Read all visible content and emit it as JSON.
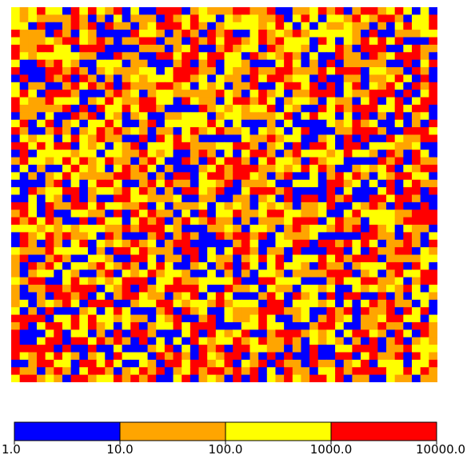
{
  "chart_data": {
    "type": "heatmap",
    "title": "",
    "xlabel": "",
    "ylabel": "",
    "grid": false,
    "rows": 50,
    "cols": 50,
    "scale": "log",
    "cell_value_note": "dense random-looking log-scale grid; individual cell values are not legible at this resolution",
    "colorbar": {
      "position": "bottom",
      "bins": [
        {
          "from": 1.0,
          "to": 10.0,
          "color": "#0000ff"
        },
        {
          "from": 10.0,
          "to": 100.0,
          "color": "#ffa500"
        },
        {
          "from": 100.0,
          "to": 1000.0,
          "color": "#ffff00"
        },
        {
          "from": 1000.0,
          "to": 10000.0,
          "color": "#ff0000"
        }
      ],
      "tick_labels": [
        "1.0",
        "10.0",
        "100.0",
        "1000.0",
        "10000.0"
      ]
    }
  }
}
